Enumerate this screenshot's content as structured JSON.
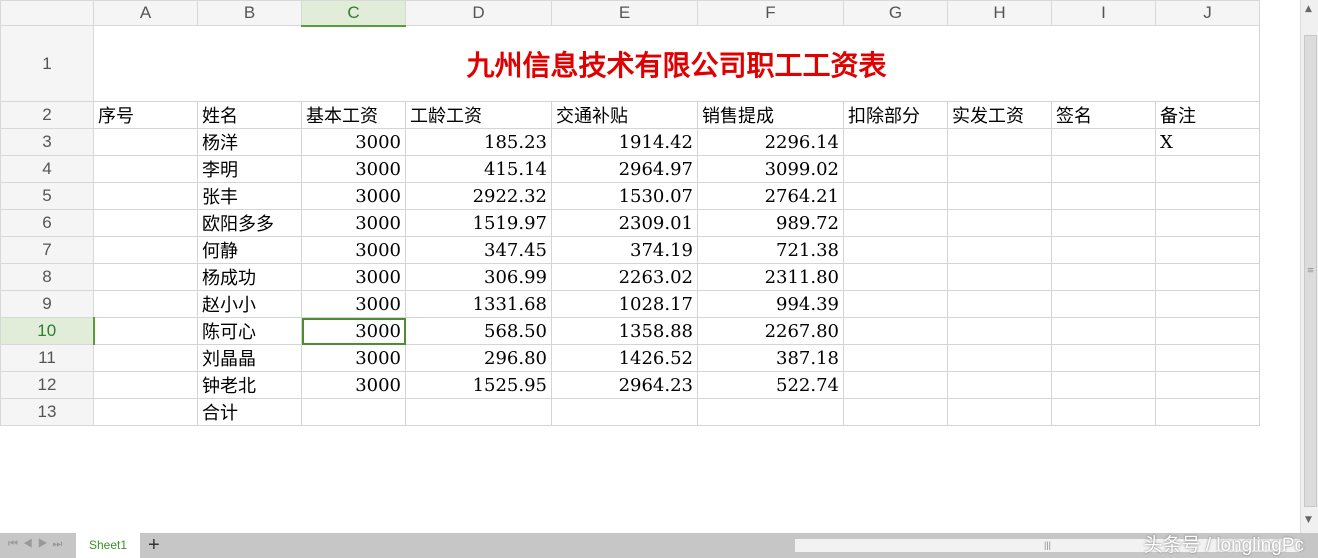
{
  "columns": [
    "A",
    "B",
    "C",
    "D",
    "E",
    "F",
    "G",
    "H",
    "I",
    "J"
  ],
  "selected_column": "C",
  "selected_row": "10",
  "title": "九州信息技术有限公司职工工资表",
  "headers": [
    "序号",
    "姓名",
    "基本工资",
    "工龄工资",
    "交通补贴",
    "销售提成",
    "扣除部分",
    "实发工资",
    "签名",
    "备注"
  ],
  "rows": [
    {
      "row": "3",
      "name": "杨洋",
      "base": "3000",
      "seniority": "185.23",
      "transport": "1914.42",
      "sales": "2296.14",
      "note": "X"
    },
    {
      "row": "4",
      "name": "李明",
      "base": "3000",
      "seniority": "415.14",
      "transport": "2964.97",
      "sales": "3099.02",
      "note": ""
    },
    {
      "row": "5",
      "name": "张丰",
      "base": "3000",
      "seniority": "2922.32",
      "transport": "1530.07",
      "sales": "2764.21",
      "note": ""
    },
    {
      "row": "6",
      "name": "欧阳多多",
      "base": "3000",
      "seniority": "1519.97",
      "transport": "2309.01",
      "sales": "989.72",
      "note": ""
    },
    {
      "row": "7",
      "name": "何静",
      "base": "3000",
      "seniority": "347.45",
      "transport": "374.19",
      "sales": "721.38",
      "note": ""
    },
    {
      "row": "8",
      "name": "杨成功",
      "base": "3000",
      "seniority": "306.99",
      "transport": "2263.02",
      "sales": "2311.80",
      "note": ""
    },
    {
      "row": "9",
      "name": "赵小小",
      "base": "3000",
      "seniority": "1331.68",
      "transport": "1028.17",
      "sales": "994.39",
      "note": ""
    },
    {
      "row": "10",
      "name": "陈可心",
      "base": "3000",
      "seniority": "568.50",
      "transport": "1358.88",
      "sales": "2267.80",
      "note": ""
    },
    {
      "row": "11",
      "name": "刘晶晶",
      "base": "3000",
      "seniority": "296.80",
      "transport": "1426.52",
      "sales": "387.18",
      "note": ""
    },
    {
      "row": "12",
      "name": "钟老北",
      "base": "3000",
      "seniority": "1525.95",
      "transport": "2964.23",
      "sales": "522.74",
      "note": ""
    }
  ],
  "total_row": {
    "row": "13",
    "label": "合计"
  },
  "sheet_tab": "Sheet1",
  "add_sheet": "+",
  "watermark": "头条号 / longlingPc",
  "colors": {
    "title": "#e00000",
    "selection": "#4f8d33"
  }
}
